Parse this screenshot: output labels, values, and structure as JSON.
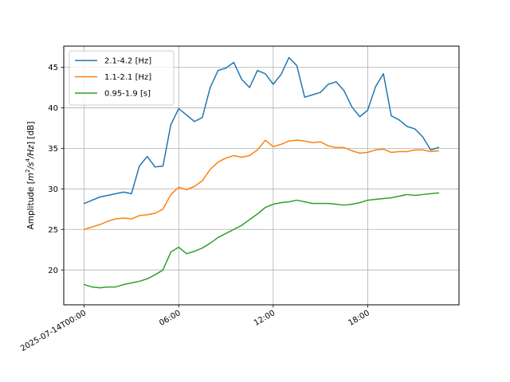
{
  "chart_data": {
    "type": "line",
    "title": "",
    "xlabel": "",
    "ylabel_parts": {
      "prefix": "Amplitude [",
      "m": "m",
      "m_exp": "2",
      "mid": "/",
      "s": "s",
      "s_exp": "4",
      "tail": "/Hz",
      "suffix": "] [dB]"
    },
    "x_start": "2025-07-14T00:00",
    "x_unit": "hours",
    "xlim": [
      -1.3,
      23.8
    ],
    "ylim": [
      15.7,
      47.6
    ],
    "x_ticks": [
      {
        "value": 0,
        "label": "2025-07-14T00:00"
      },
      {
        "value": 6,
        "label": "06:00"
      },
      {
        "value": 12,
        "label": "12:00"
      },
      {
        "value": 18,
        "label": "18:00"
      }
    ],
    "y_ticks": [
      {
        "value": 20,
        "label": "20"
      },
      {
        "value": 25,
        "label": "25"
      },
      {
        "value": 30,
        "label": "30"
      },
      {
        "value": 35,
        "label": "35"
      },
      {
        "value": 40,
        "label": "40"
      },
      {
        "value": 45,
        "label": "45"
      }
    ],
    "grid": true,
    "legend_position": "top-left",
    "x": [
      0,
      0.5,
      1,
      1.5,
      2,
      2.5,
      3,
      3.5,
      4,
      4.5,
      5,
      5.5,
      6,
      6.5,
      7,
      7.5,
      8,
      8.5,
      9,
      9.5,
      10,
      10.5,
      11,
      11.5,
      12,
      12.5,
      13,
      13.5,
      14,
      14.5,
      15,
      15.5,
      16,
      16.5,
      17,
      17.5,
      18,
      18.5,
      19,
      19.5,
      20,
      20.5,
      21,
      21.5,
      22,
      22.5
    ],
    "series": [
      {
        "name": "2.1-4.2 [Hz]",
        "color": "#1f77b4",
        "values": [
          28.2,
          28.6,
          29.0,
          29.2,
          29.4,
          29.6,
          29.4,
          32.8,
          34.0,
          32.7,
          32.8,
          37.9,
          39.9,
          39.1,
          38.3,
          38.8,
          42.5,
          44.6,
          44.9,
          45.6,
          43.5,
          42.5,
          44.6,
          44.2,
          42.9,
          44.1,
          46.2,
          45.2,
          41.3,
          41.6,
          41.9,
          42.9,
          43.2,
          42.1,
          40.1,
          38.9,
          39.7,
          42.6,
          44.2,
          39.0,
          38.5,
          37.7,
          37.4,
          36.4,
          34.8,
          35.1
        ]
      },
      {
        "name": "1.1-2.1 [Hz]",
        "color": "#ff7f0e",
        "values": [
          25.0,
          25.3,
          25.6,
          26.0,
          26.3,
          26.4,
          26.3,
          26.7,
          26.8,
          27.0,
          27.5,
          29.3,
          30.2,
          29.9,
          30.3,
          31.0,
          32.4,
          33.3,
          33.8,
          34.1,
          33.9,
          34.1,
          34.8,
          36.0,
          35.2,
          35.5,
          35.9,
          36.0,
          35.9,
          35.7,
          35.8,
          35.3,
          35.1,
          35.1,
          34.7,
          34.4,
          34.5,
          34.8,
          34.9,
          34.5,
          34.6,
          34.6,
          34.8,
          34.8,
          34.6,
          34.7
        ]
      },
      {
        "name": "0.95-1.9 [s]",
        "color": "#2ca02c",
        "values": [
          18.2,
          17.9,
          17.8,
          17.9,
          17.9,
          18.2,
          18.4,
          18.6,
          18.9,
          19.4,
          20.0,
          22.2,
          22.8,
          22.0,
          22.3,
          22.7,
          23.3,
          24.0,
          24.5,
          25.0,
          25.5,
          26.2,
          26.9,
          27.7,
          28.1,
          28.3,
          28.4,
          28.6,
          28.4,
          28.2,
          28.2,
          28.2,
          28.1,
          28.0,
          28.1,
          28.3,
          28.6,
          28.7,
          28.8,
          28.9,
          29.1,
          29.3,
          29.2,
          29.3,
          29.4,
          29.5
        ]
      }
    ]
  }
}
